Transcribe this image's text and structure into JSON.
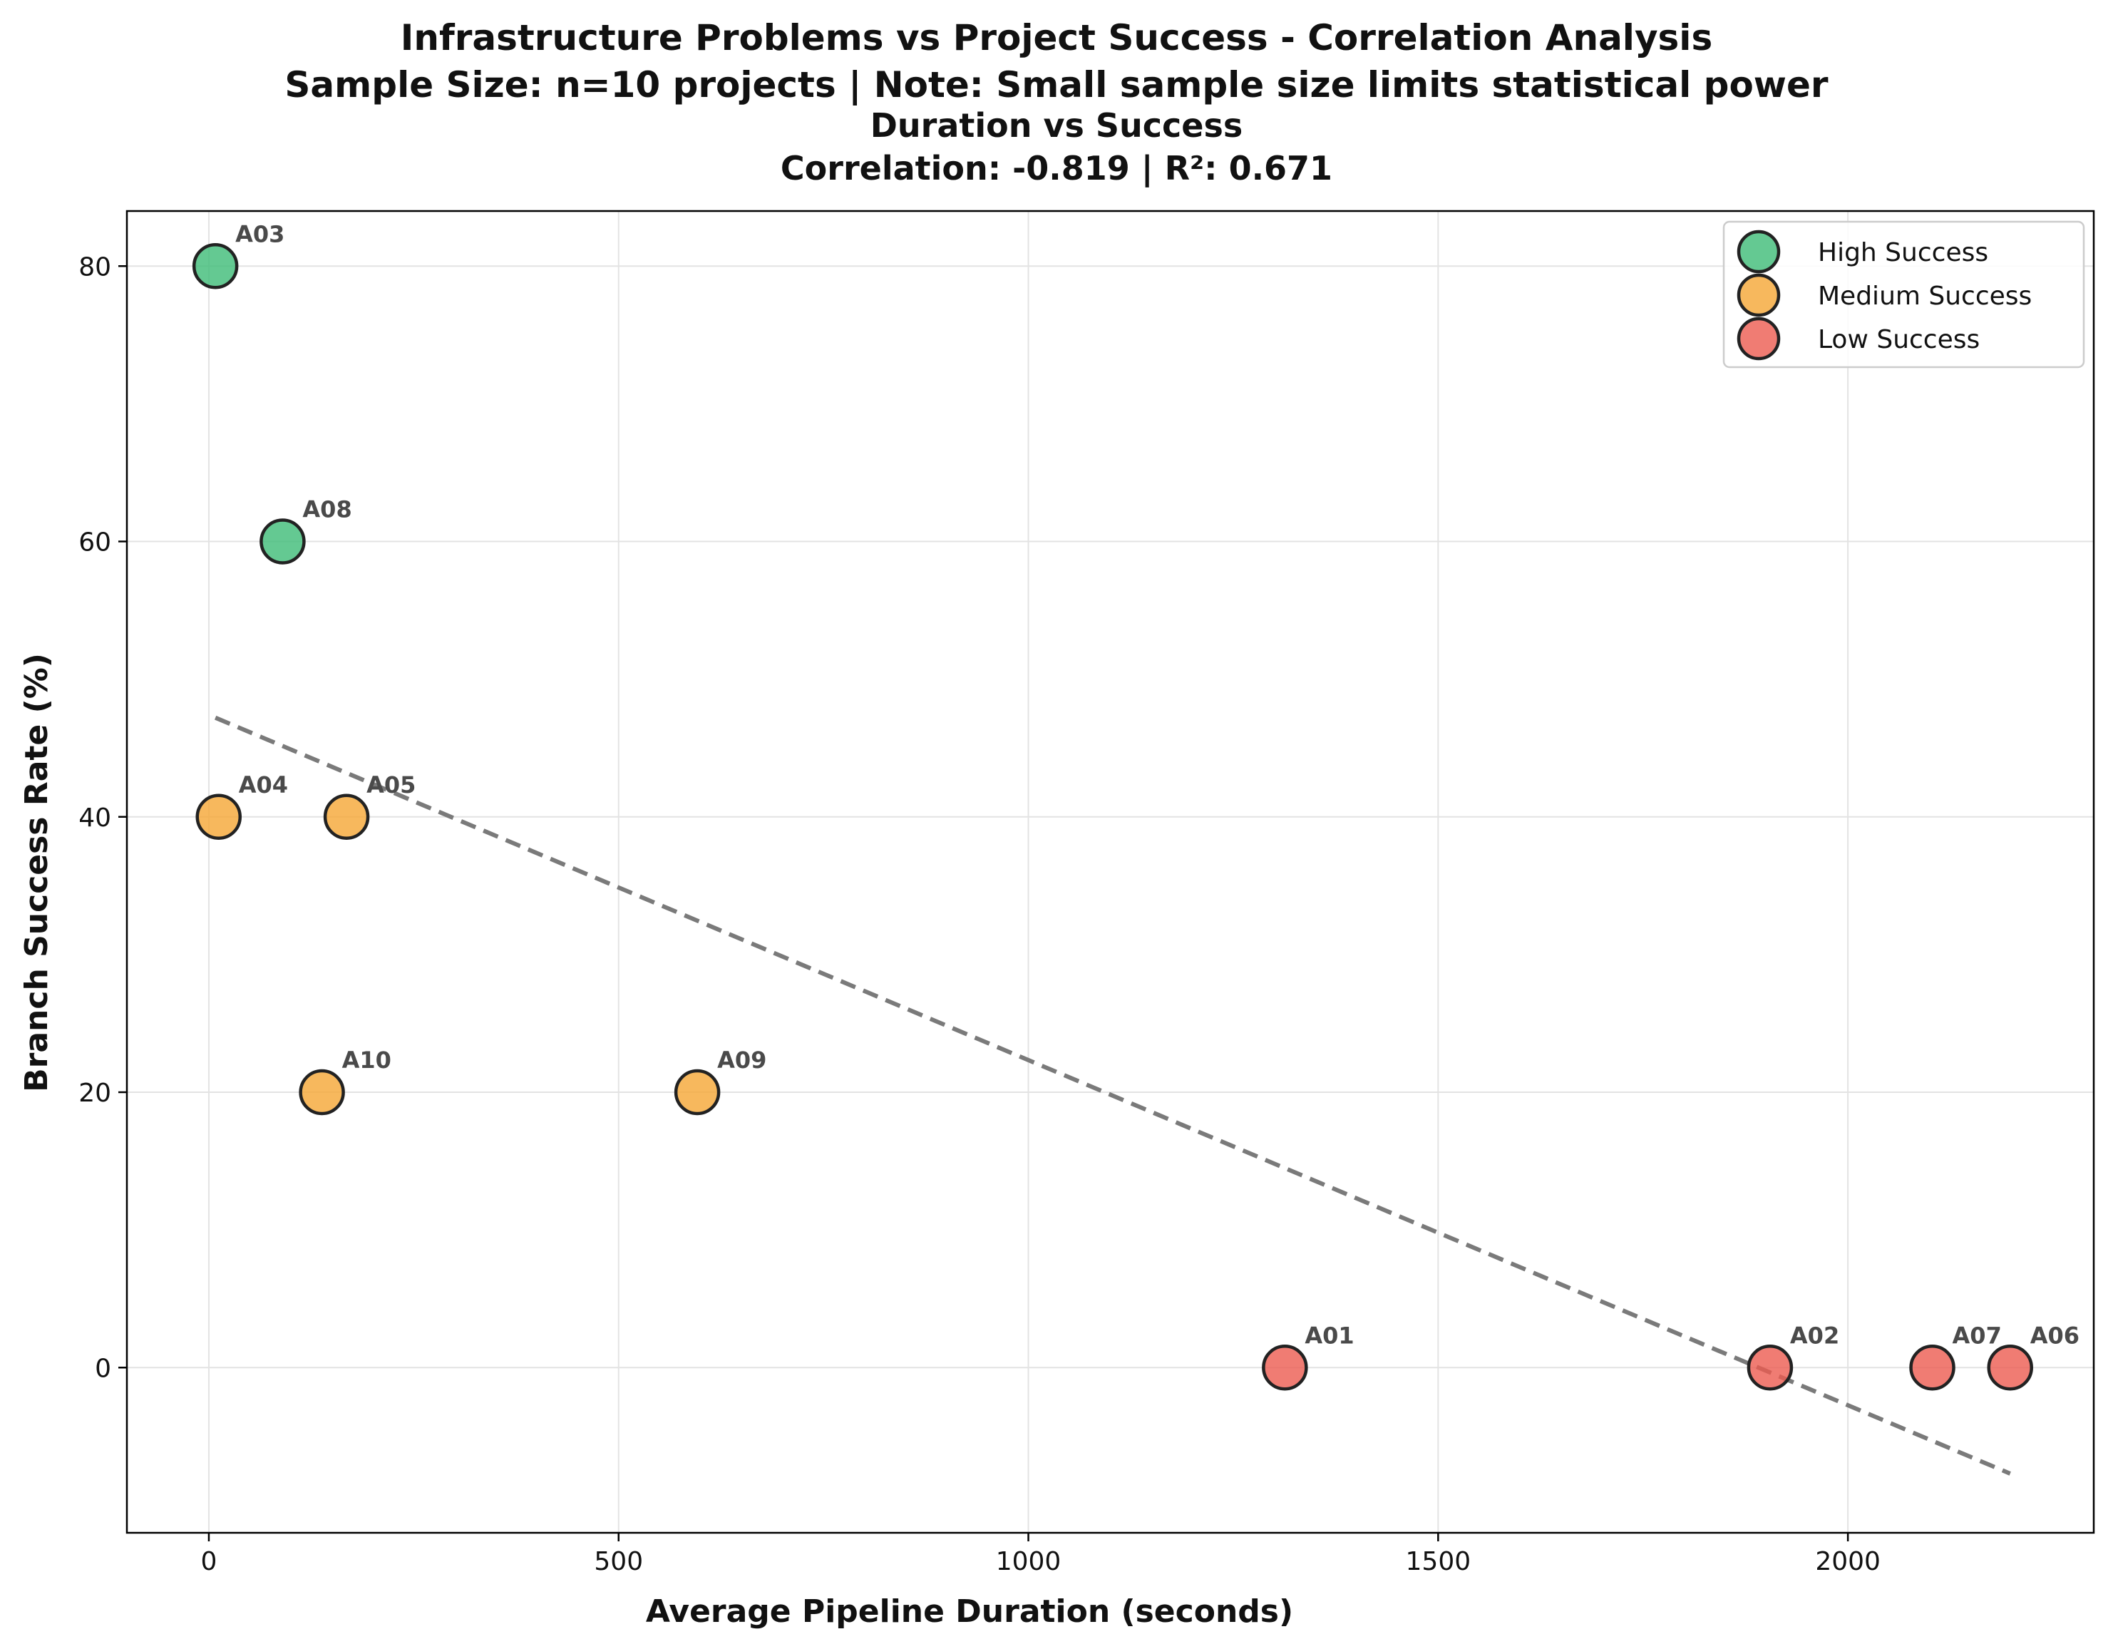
{
  "figure_title": "Infrastructure Problems vs Project Success - Correlation Analysis",
  "figure_subtitle": "Sample Size: n=10 projects | Note: Small sample size limits statistical power",
  "chart_data": {
    "type": "scatter",
    "title": "Duration vs Success",
    "subtitle": "Correlation: -0.819 | R²: 0.671",
    "xlabel": "Average Pipeline Duration (seconds)",
    "ylabel": "Branch Success Rate (%)",
    "xlim": [
      -100,
      2300
    ],
    "ylim": [
      -12,
      84
    ],
    "xticks": [
      0,
      500,
      1000,
      1500,
      2000
    ],
    "yticks": [
      0,
      20,
      40,
      60,
      80
    ],
    "grid": true,
    "legend_position": "top-right",
    "series": [
      {
        "name": "High Success",
        "color": "#3dbb77",
        "points": [
          {
            "label": "A03",
            "x": 8,
            "y": 80
          },
          {
            "label": "A08",
            "x": 90,
            "y": 60
          }
        ]
      },
      {
        "name": "Medium Success",
        "color": "#f5a634",
        "points": [
          {
            "label": "A04",
            "x": 12,
            "y": 40
          },
          {
            "label": "A05",
            "x": 168,
            "y": 40
          },
          {
            "label": "A10",
            "x": 138,
            "y": 20
          },
          {
            "label": "A09",
            "x": 596,
            "y": 20
          }
        ]
      },
      {
        "name": "Low Success",
        "color": "#ec5b50",
        "points": [
          {
            "label": "A01",
            "x": 1313,
            "y": 0
          },
          {
            "label": "A02",
            "x": 1905,
            "y": 0
          },
          {
            "label": "A07",
            "x": 2103,
            "y": 0
          },
          {
            "label": "A06",
            "x": 2198,
            "y": 0
          }
        ]
      }
    ],
    "trendline": {
      "style": "dashed",
      "color": "#7a7a7a",
      "x": [
        8,
        2198
      ],
      "y": [
        47.2,
        -7.7
      ]
    }
  }
}
